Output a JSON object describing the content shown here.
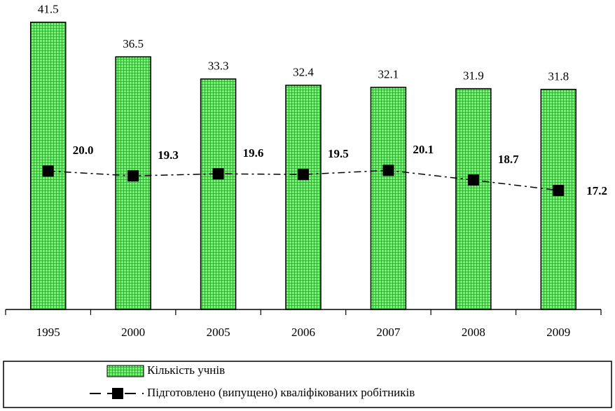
{
  "chart_data": {
    "type": "bar",
    "categories": [
      "1995",
      "2000",
      "2005",
      "2006",
      "2007",
      "2008",
      "2009"
    ],
    "series": [
      {
        "name": "Кількість учнів",
        "type": "bar",
        "color": "#66ff66",
        "values": [
          41.5,
          36.5,
          33.3,
          32.4,
          32.1,
          31.9,
          31.8
        ]
      },
      {
        "name": "Підготовлено (випущено) кваліфікованих робітників",
        "type": "line",
        "color": "#000000",
        "values": [
          20.0,
          19.3,
          19.6,
          19.5,
          20.1,
          18.7,
          17.2
        ],
        "value_labels": [
          "20.0",
          "19.3",
          "19.6",
          "19.5",
          "20.1",
          "18.7",
          "17.2"
        ]
      }
    ],
    "ylim": [
      0,
      44
    ]
  }
}
